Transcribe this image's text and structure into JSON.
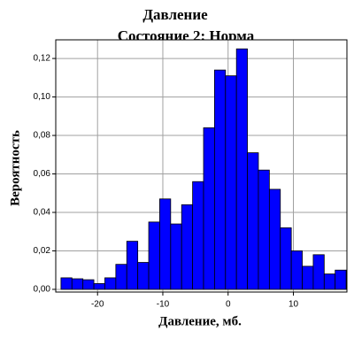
{
  "chart_data": {
    "type": "histogram",
    "title": "Давление",
    "subtitle": "Состояние 2: Норма",
    "x_label": "Давление, мб.",
    "y_label": "Вероятность",
    "bins": [
      -25.6,
      -23.92,
      -22.24,
      -20.56,
      -18.88,
      -17.2,
      -15.52,
      -13.84,
      -12.16,
      -10.48,
      -8.8,
      -7.12,
      -5.44,
      -3.76,
      -2.08,
      -0.4,
      1.28,
      2.96,
      4.64,
      6.32,
      8.0,
      9.68,
      11.36,
      13.04,
      14.72,
      16.4,
      18.08
    ],
    "values": [
      0.006,
      0.0055,
      0.005,
      0.003,
      0.006,
      0.013,
      0.025,
      0.014,
      0.035,
      0.047,
      0.034,
      0.044,
      0.056,
      0.084,
      0.114,
      0.111,
      0.125,
      0.071,
      0.062,
      0.052,
      0.032,
      0.02,
      0.012,
      0.018,
      0.008,
      0.01
    ],
    "color": "#0000ff",
    "xlim": [
      -26.4,
      18.2
    ],
    "ylim": [
      -0.0014,
      0.1297
    ],
    "xticks": [
      -20,
      -10,
      0,
      10
    ],
    "yticks": [
      {
        "value": 0,
        "label": "0,00"
      },
      {
        "value": 0.02,
        "label": "0,02"
      },
      {
        "value": 0.04,
        "label": "0,04"
      },
      {
        "value": 0.06,
        "label": "0,06"
      },
      {
        "value": 0.08,
        "label": "0,08"
      },
      {
        "value": 0.1,
        "label": "0,10"
      },
      {
        "value": 0.12,
        "label": "0,12"
      }
    ],
    "grid": true
  }
}
